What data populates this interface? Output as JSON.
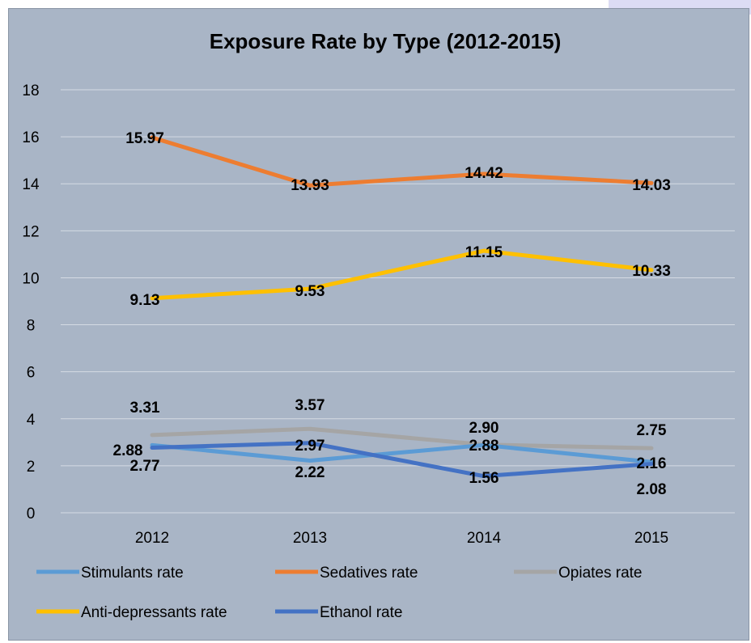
{
  "chart_data": {
    "type": "line",
    "title": "Exposure Rate by Type (2012-2015)",
    "categories": [
      "2012",
      "2013",
      "2014",
      "2015"
    ],
    "ylim": [
      0,
      18
    ],
    "yticks": [
      0,
      2,
      4,
      6,
      8,
      10,
      12,
      14,
      16,
      18
    ],
    "grid": true,
    "legend_position": "bottom",
    "series": [
      {
        "name": "Stimulants rate",
        "color": "#5b9bd5",
        "values": [
          2.88,
          2.22,
          2.88,
          2.16
        ],
        "value_labels": [
          "2.88",
          "2.22",
          "2.88",
          "2.16"
        ]
      },
      {
        "name": "Sedatives rate",
        "color": "#ed7d31",
        "values": [
          15.97,
          13.93,
          14.42,
          14.03
        ],
        "value_labels": [
          "15.97",
          "13.93",
          "14.42",
          "14.03"
        ]
      },
      {
        "name": "Opiates rate",
        "color": "#a5a5a5",
        "values": [
          3.31,
          3.57,
          2.9,
          2.75
        ],
        "value_labels": [
          "3.31",
          "3.57",
          "2.90",
          "2.75"
        ]
      },
      {
        "name": "Anti-depressants rate",
        "color": "#ffc000",
        "values": [
          9.13,
          9.53,
          11.15,
          10.33
        ],
        "value_labels": [
          "9.13",
          "9.53",
          "11.15",
          "10.33"
        ]
      },
      {
        "name": "Ethanol rate",
        "color": "#4472c4",
        "values": [
          2.77,
          2.97,
          1.56,
          2.08
        ],
        "value_labels": [
          "2.77",
          "2.97",
          "1.56",
          "2.08"
        ]
      }
    ]
  }
}
